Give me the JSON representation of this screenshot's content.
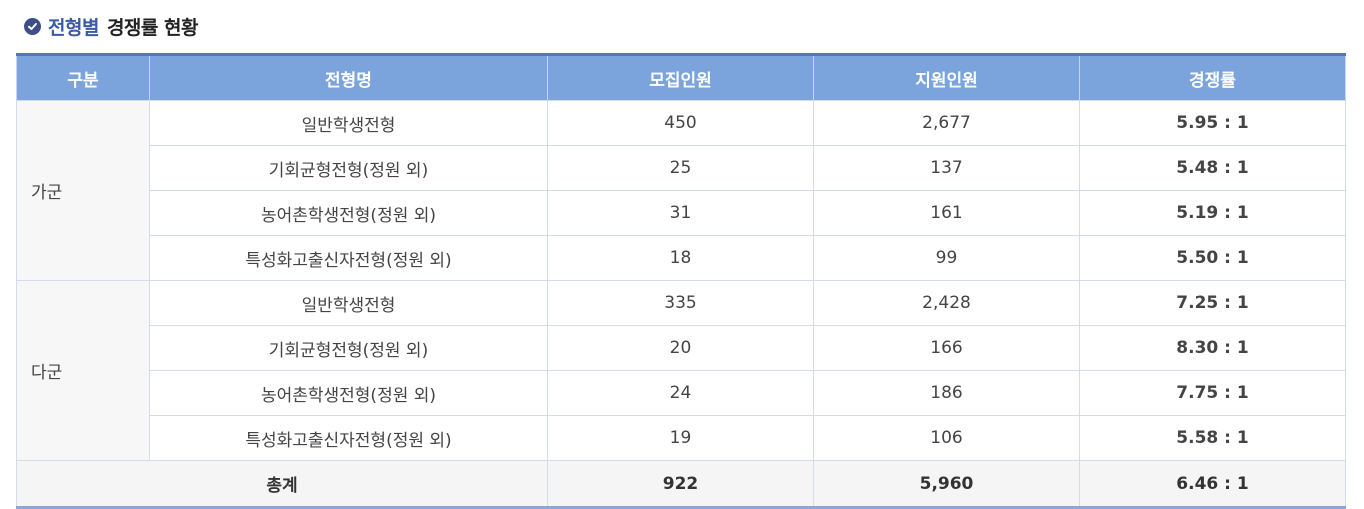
{
  "heading": {
    "accent": "전형별",
    "rest": "경쟁률 현황",
    "icon": "check-circle-icon"
  },
  "colors": {
    "header_bg": "#7ba4dc",
    "accent": "#3b5aa6"
  },
  "columns": [
    "구분",
    "전형명",
    "모집인원",
    "지원인원",
    "경쟁률"
  ],
  "groups": [
    {
      "label": "가군",
      "rows": [
        {
          "name": "일반학생전형",
          "quota": "450",
          "applicants": "2,677",
          "rate": "5.95 : 1"
        },
        {
          "name": "기회균형전형(정원 외)",
          "quota": "25",
          "applicants": "137",
          "rate": "5.48 : 1"
        },
        {
          "name": "농어촌학생전형(정원 외)",
          "quota": "31",
          "applicants": "161",
          "rate": "5.19 : 1"
        },
        {
          "name": "특성화고출신자전형(정원 외)",
          "quota": "18",
          "applicants": "99",
          "rate": "5.50 : 1"
        }
      ]
    },
    {
      "label": "다군",
      "rows": [
        {
          "name": "일반학생전형",
          "quota": "335",
          "applicants": "2,428",
          "rate": "7.25 : 1"
        },
        {
          "name": "기회균형전형(정원 외)",
          "quota": "20",
          "applicants": "166",
          "rate": "8.30 : 1"
        },
        {
          "name": "농어촌학생전형(정원 외)",
          "quota": "24",
          "applicants": "186",
          "rate": "7.75 : 1"
        },
        {
          "name": "특성화고출신자전형(정원 외)",
          "quota": "19",
          "applicants": "106",
          "rate": "5.58 : 1"
        }
      ]
    }
  ],
  "total": {
    "label": "총계",
    "quota": "922",
    "applicants": "5,960",
    "rate": "6.46 : 1"
  }
}
